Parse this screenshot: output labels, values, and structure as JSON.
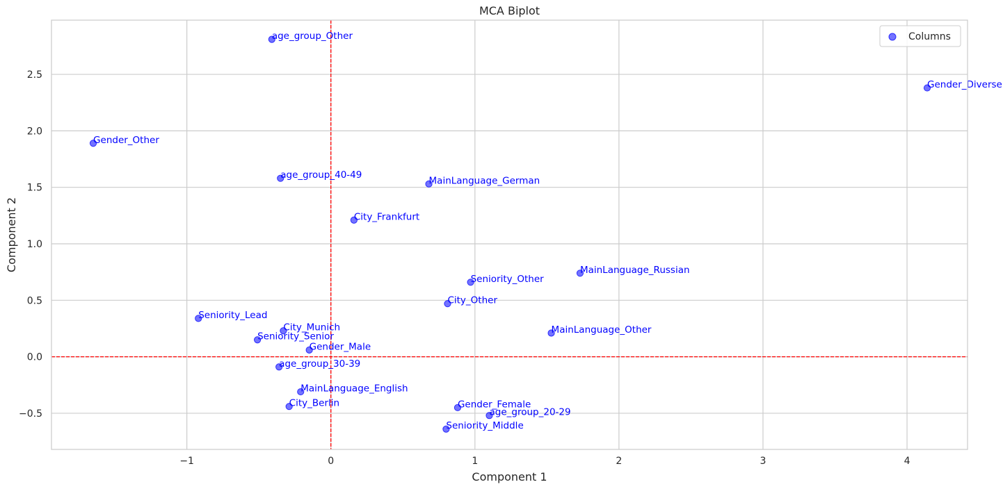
{
  "chart_data": {
    "type": "scatter",
    "title": "MCA Biplot",
    "xlabel": "Component 1",
    "ylabel": "Component 2",
    "xlim": [
      -1.94,
      4.42
    ],
    "ylim": [
      -0.82,
      2.98
    ],
    "x_ticks": [
      -1,
      0,
      1,
      2,
      3,
      4
    ],
    "x_tick_labels": [
      "−1",
      "0",
      "1",
      "2",
      "3",
      "4"
    ],
    "y_ticks": [
      -0.5,
      0.0,
      0.5,
      1.0,
      1.5,
      2.0,
      2.5
    ],
    "y_tick_labels": [
      "−0.5",
      "0.0",
      "0.5",
      "1.0",
      "1.5",
      "2.0",
      "2.5"
    ],
    "grid": true,
    "reference_lines": {
      "x": 0,
      "y": 0,
      "color": "#ff0000",
      "style": "dashed"
    },
    "legend": {
      "position": "top-right",
      "entries": [
        "Columns"
      ]
    },
    "colors": {
      "points": "#0000ff",
      "labels": "#0000ff",
      "grid": "#cccccc",
      "reference": "#ff0000"
    },
    "series": [
      {
        "name": "Columns",
        "points": [
          {
            "label": "age_group_Other",
            "x": -0.41,
            "y": 2.81
          },
          {
            "label": "Gender_Diverse",
            "x": 4.14,
            "y": 2.38
          },
          {
            "label": "Gender_Other",
            "x": -1.65,
            "y": 1.89
          },
          {
            "label": "age_group_40-49",
            "x": -0.35,
            "y": 1.58
          },
          {
            "label": "MainLanguage_German",
            "x": 0.68,
            "y": 1.53
          },
          {
            "label": "City_Frankfurt",
            "x": 0.16,
            "y": 1.21
          },
          {
            "label": "MainLanguage_Russian",
            "x": 1.73,
            "y": 0.74
          },
          {
            "label": "Seniority_Other",
            "x": 0.97,
            "y": 0.66
          },
          {
            "label": "City_Other",
            "x": 0.81,
            "y": 0.47
          },
          {
            "label": "Seniority_Lead",
            "x": -0.92,
            "y": 0.34
          },
          {
            "label": "City_Munich",
            "x": -0.33,
            "y": 0.23
          },
          {
            "label": "MainLanguage_Other",
            "x": 1.53,
            "y": 0.21
          },
          {
            "label": "Seniority_Senior",
            "x": -0.51,
            "y": 0.15
          },
          {
            "label": "Gender_Male",
            "x": -0.15,
            "y": 0.06
          },
          {
            "label": "age_group_30-39",
            "x": -0.36,
            "y": -0.09
          },
          {
            "label": "MainLanguage_English",
            "x": -0.21,
            "y": -0.31
          },
          {
            "label": "City_Berlin",
            "x": -0.29,
            "y": -0.44
          },
          {
            "label": "Gender_Female",
            "x": 0.88,
            "y": -0.45
          },
          {
            "label": "age_group_20-29",
            "x": 1.1,
            "y": -0.52
          },
          {
            "label": "Seniority_Middle",
            "x": 0.8,
            "y": -0.64
          }
        ]
      }
    ]
  }
}
